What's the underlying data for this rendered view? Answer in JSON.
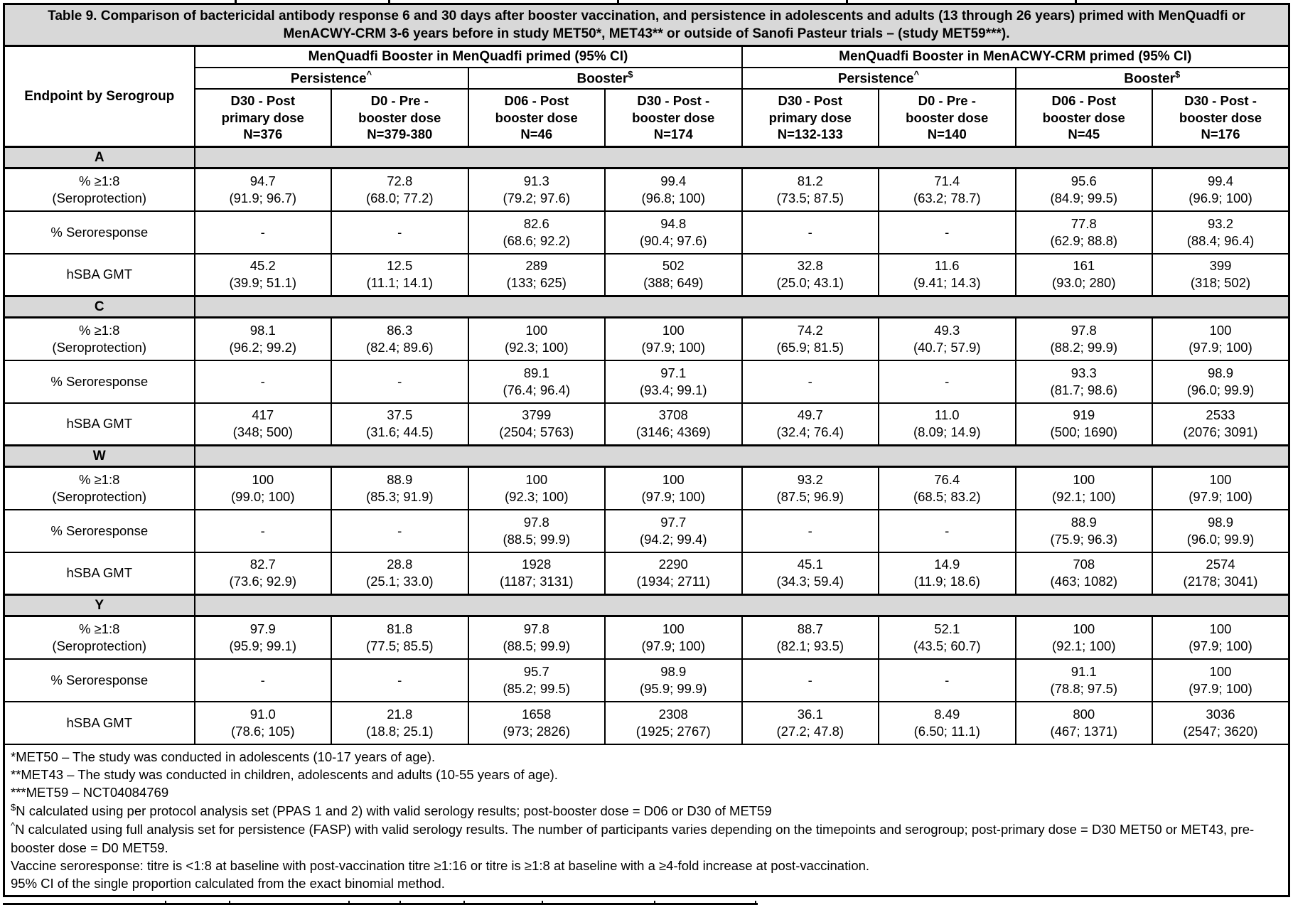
{
  "title": "Table 9. Comparison of bactericidal antibody response 6 and 30 days after booster vaccination, and persistence in adolescents and adults (13 through 26 years) primed with MenQuadfi or MenACWY-CRM 3-6 years before in study MET50*, MET43** or outside of Sanofi Pasteur trials – (study MET59***).",
  "row_header": "Endpoint by Serogroup",
  "colors": {
    "header_bg": "#d8d8d8",
    "border": "#000000",
    "background": "#ffffff"
  },
  "groups": [
    {
      "label": "MenQuadfi Booster in MenQuadfi primed (95% CI)"
    },
    {
      "label": "MenQuadfi Booster in MenACWY-CRM primed (95% CI)"
    }
  ],
  "subgroups": [
    {
      "label": "Persistence",
      "sup": "^"
    },
    {
      "label": "Booster",
      "sup": "$"
    },
    {
      "label": "Persistence",
      "sup": "^"
    },
    {
      "label": "Booster",
      "sup": "$"
    }
  ],
  "columns": [
    {
      "lines": [
        "D30 - Post",
        "primary dose",
        "N=376"
      ]
    },
    {
      "lines": [
        "D0 - Pre -",
        "booster dose",
        "N=379-380"
      ]
    },
    {
      "lines": [
        "D06 - Post",
        "booster dose",
        "N=46"
      ]
    },
    {
      "lines": [
        "D30 - Post -",
        "booster dose",
        "N=174"
      ]
    },
    {
      "lines": [
        "D30 - Post",
        "primary dose",
        "N=132-133"
      ]
    },
    {
      "lines": [
        "D0 - Pre -",
        "booster dose",
        "N=140"
      ]
    },
    {
      "lines": [
        "D06 - Post",
        "booster dose",
        "N=45"
      ]
    },
    {
      "lines": [
        "D30 - Post -",
        "booster dose",
        "N=176"
      ]
    }
  ],
  "sections": [
    {
      "serogroup": "A",
      "rows": [
        {
          "label_lines": [
            "% ≥1:8",
            "(Seroprotection)"
          ],
          "cells": [
            {
              "v": "94.7",
              "ci": "(91.9; 96.7)"
            },
            {
              "v": "72.8",
              "ci": "(68.0; 77.2)"
            },
            {
              "v": "91.3",
              "ci": "(79.2; 97.6)"
            },
            {
              "v": "99.4",
              "ci": "(96.8; 100)"
            },
            {
              "v": "81.2",
              "ci": "(73.5; 87.5)"
            },
            {
              "v": "71.4",
              "ci": "(63.2; 78.7)"
            },
            {
              "v": "95.6",
              "ci": "(84.9; 99.5)"
            },
            {
              "v": "99.4",
              "ci": "(96.9; 100)"
            }
          ]
        },
        {
          "label_lines": [
            "% Seroresponse"
          ],
          "cells": [
            {
              "v": "-",
              "ci": ""
            },
            {
              "v": "-",
              "ci": ""
            },
            {
              "v": "82.6",
              "ci": "(68.6; 92.2)"
            },
            {
              "v": "94.8",
              "ci": "(90.4; 97.6)"
            },
            {
              "v": "-",
              "ci": ""
            },
            {
              "v": "-",
              "ci": ""
            },
            {
              "v": "77.8",
              "ci": "(62.9; 88.8)"
            },
            {
              "v": "93.2",
              "ci": "(88.4; 96.4)"
            }
          ]
        },
        {
          "label_lines": [
            "hSBA GMT"
          ],
          "cells": [
            {
              "v": "45.2",
              "ci": "(39.9; 51.1)"
            },
            {
              "v": "12.5",
              "ci": "(11.1; 14.1)"
            },
            {
              "v": "289",
              "ci": "(133; 625)"
            },
            {
              "v": "502",
              "ci": "(388; 649)"
            },
            {
              "v": "32.8",
              "ci": "(25.0; 43.1)"
            },
            {
              "v": "11.6",
              "ci": "(9.41; 14.3)"
            },
            {
              "v": "161",
              "ci": "(93.0; 280)"
            },
            {
              "v": "399",
              "ci": "(318; 502)"
            }
          ]
        }
      ]
    },
    {
      "serogroup": "C",
      "rows": [
        {
          "label_lines": [
            "% ≥1:8",
            "(Seroprotection)"
          ],
          "cells": [
            {
              "v": "98.1",
              "ci": "(96.2; 99.2)"
            },
            {
              "v": "86.3",
              "ci": "(82.4; 89.6)"
            },
            {
              "v": "100",
              "ci": "(92.3; 100)"
            },
            {
              "v": "100",
              "ci": "(97.9; 100)"
            },
            {
              "v": "74.2",
              "ci": "(65.9; 81.5)"
            },
            {
              "v": "49.3",
              "ci": "(40.7; 57.9)"
            },
            {
              "v": "97.8",
              "ci": "(88.2; 99.9)"
            },
            {
              "v": "100",
              "ci": "(97.9; 100)"
            }
          ]
        },
        {
          "label_lines": [
            "% Seroresponse"
          ],
          "cells": [
            {
              "v": "-",
              "ci": ""
            },
            {
              "v": "-",
              "ci": ""
            },
            {
              "v": "89.1",
              "ci": "(76.4; 96.4)"
            },
            {
              "v": "97.1",
              "ci": "(93.4; 99.1)"
            },
            {
              "v": "-",
              "ci": ""
            },
            {
              "v": "-",
              "ci": ""
            },
            {
              "v": "93.3",
              "ci": "(81.7; 98.6)"
            },
            {
              "v": "98.9",
              "ci": "(96.0; 99.9)"
            }
          ]
        },
        {
          "label_lines": [
            "hSBA GMT"
          ],
          "cells": [
            {
              "v": "417",
              "ci": "(348; 500)"
            },
            {
              "v": "37.5",
              "ci": "(31.6; 44.5)"
            },
            {
              "v": "3799",
              "ci": "(2504; 5763)"
            },
            {
              "v": "3708",
              "ci": "(3146; 4369)"
            },
            {
              "v": "49.7",
              "ci": "(32.4; 76.4)"
            },
            {
              "v": "11.0",
              "ci": "(8.09; 14.9)"
            },
            {
              "v": "919",
              "ci": "(500; 1690)"
            },
            {
              "v": "2533",
              "ci": "(2076; 3091)"
            }
          ]
        }
      ]
    },
    {
      "serogroup": "W",
      "rows": [
        {
          "label_lines": [
            "% ≥1:8",
            "(Seroprotection)"
          ],
          "cells": [
            {
              "v": "100",
              "ci": "(99.0; 100)"
            },
            {
              "v": "88.9",
              "ci": "(85.3; 91.9)"
            },
            {
              "v": "100",
              "ci": "(92.3; 100)"
            },
            {
              "v": "100",
              "ci": "(97.9; 100)"
            },
            {
              "v": "93.2",
              "ci": "(87.5; 96.9)"
            },
            {
              "v": "76.4",
              "ci": "(68.5; 83.2)"
            },
            {
              "v": "100",
              "ci": "(92.1; 100)"
            },
            {
              "v": "100",
              "ci": "(97.9; 100)"
            }
          ]
        },
        {
          "label_lines": [
            "% Seroresponse"
          ],
          "cells": [
            {
              "v": "-",
              "ci": ""
            },
            {
              "v": "-",
              "ci": ""
            },
            {
              "v": "97.8",
              "ci": "(88.5; 99.9)"
            },
            {
              "v": "97.7",
              "ci": "(94.2; 99.4)"
            },
            {
              "v": "-",
              "ci": ""
            },
            {
              "v": "-",
              "ci": ""
            },
            {
              "v": "88.9",
              "ci": "(75.9; 96.3)"
            },
            {
              "v": "98.9",
              "ci": "(96.0; 99.9)"
            }
          ]
        },
        {
          "label_lines": [
            "hSBA GMT"
          ],
          "cells": [
            {
              "v": "82.7",
              "ci": "(73.6; 92.9)"
            },
            {
              "v": "28.8",
              "ci": "(25.1; 33.0)"
            },
            {
              "v": "1928",
              "ci": "(1187; 3131)"
            },
            {
              "v": "2290",
              "ci": "(1934; 2711)"
            },
            {
              "v": "45.1",
              "ci": "(34.3; 59.4)"
            },
            {
              "v": "14.9",
              "ci": "(11.9; 18.6)"
            },
            {
              "v": "708",
              "ci": "(463; 1082)"
            },
            {
              "v": "2574",
              "ci": "(2178; 3041)"
            }
          ]
        }
      ]
    },
    {
      "serogroup": "Y",
      "rows": [
        {
          "label_lines": [
            "% ≥1:8",
            "(Seroprotection)"
          ],
          "cells": [
            {
              "v": "97.9",
              "ci": "(95.9; 99.1)"
            },
            {
              "v": "81.8",
              "ci": "(77.5; 85.5)"
            },
            {
              "v": "97.8",
              "ci": "(88.5; 99.9)"
            },
            {
              "v": "100",
              "ci": "(97.9; 100)"
            },
            {
              "v": "88.7",
              "ci": "(82.1; 93.5)"
            },
            {
              "v": "52.1",
              "ci": "(43.5; 60.7)"
            },
            {
              "v": "100",
              "ci": "(92.1; 100)"
            },
            {
              "v": "100",
              "ci": "(97.9; 100)"
            }
          ]
        },
        {
          "label_lines": [
            "% Seroresponse"
          ],
          "cells": [
            {
              "v": "-",
              "ci": ""
            },
            {
              "v": "-",
              "ci": ""
            },
            {
              "v": "95.7",
              "ci": "(85.2; 99.5)"
            },
            {
              "v": "98.9",
              "ci": "(95.9; 99.9)"
            },
            {
              "v": "-",
              "ci": ""
            },
            {
              "v": "-",
              "ci": ""
            },
            {
              "v": "91.1",
              "ci": "(78.8; 97.5)"
            },
            {
              "v": "100",
              "ci": "(97.9; 100)"
            }
          ]
        },
        {
          "label_lines": [
            "hSBA GMT"
          ],
          "cells": [
            {
              "v": "91.0",
              "ci": "(78.6; 105)"
            },
            {
              "v": "21.8",
              "ci": "(18.8; 25.1)"
            },
            {
              "v": "1658",
              "ci": "(973; 2826)"
            },
            {
              "v": "2308",
              "ci": "(1925; 2767)"
            },
            {
              "v": "36.1",
              "ci": "(27.2; 47.8)"
            },
            {
              "v": "8.49",
              "ci": "(6.50; 11.1)"
            },
            {
              "v": "800",
              "ci": "(467; 1371)"
            },
            {
              "v": "3036",
              "ci": "(2547; 3620)"
            }
          ]
        }
      ]
    }
  ],
  "footnotes": [
    {
      "sup": "",
      "text": "*MET50 – The study was conducted in adolescents (10-17 years of age)."
    },
    {
      "sup": "",
      "text": "**MET43 – The study was conducted in children, adolescents and adults (10-55 years of age)."
    },
    {
      "sup": "",
      "text": "***MET59 – NCT04084769"
    },
    {
      "sup": "$",
      "text": "N calculated using per protocol analysis set (PPAS 1 and 2) with valid serology results; post-booster dose = D06 or D30 of MET59"
    },
    {
      "sup": "^",
      "text": "N calculated using full analysis set for persistence (FASP) with valid serology results. The number of participants varies depending on the timepoints and serogroup; post-primary dose = D30 MET50 or MET43, pre-booster dose = D0 MET59."
    },
    {
      "sup": "",
      "text": "Vaccine seroresponse: titre is <1:8 at baseline with post-vaccination titre ≥1:16 or titre is ≥1:8 at baseline with a ≥4-fold increase at post-vaccination."
    },
    {
      "sup": "",
      "text": "95% CI of the single proportion calculated from the exact binomial method."
    }
  ]
}
